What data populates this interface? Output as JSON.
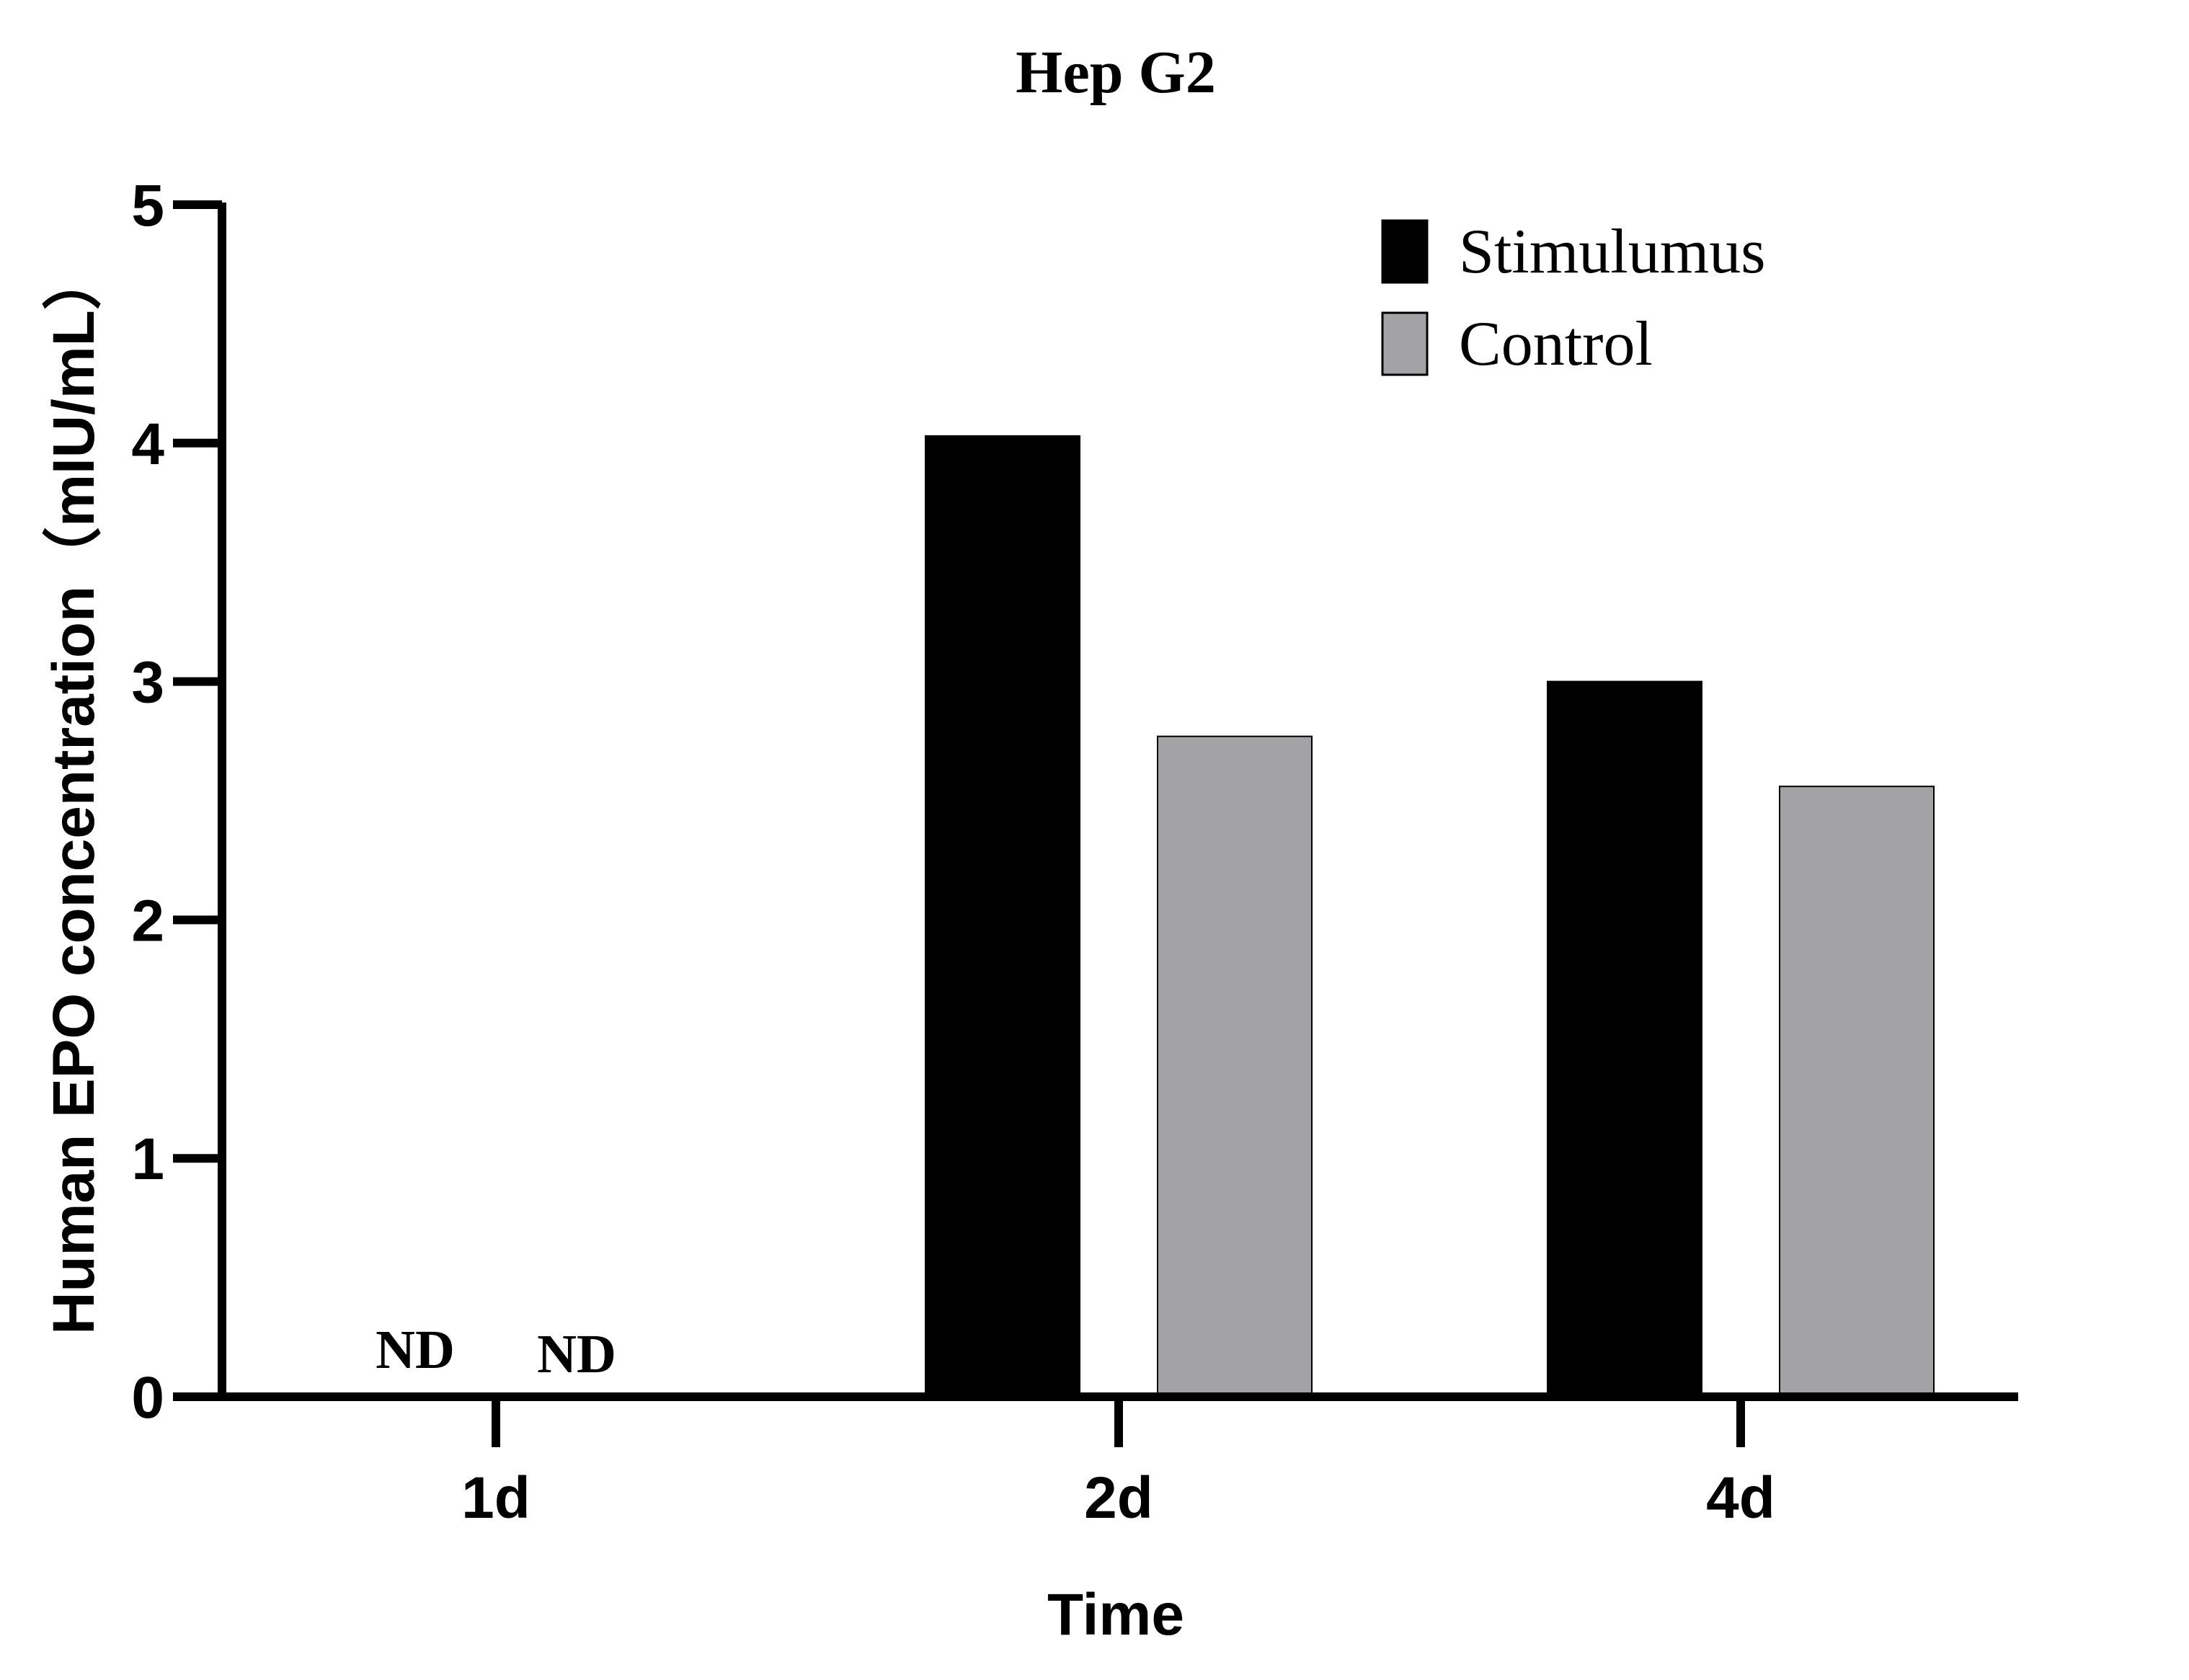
{
  "chart_data": {
    "type": "bar",
    "title": "Hep G2",
    "xlabel": "Time",
    "ylabel": "Human EPO concentration（mIU/mL）",
    "categories": [
      "1d",
      "2d",
      "4d"
    ],
    "series": [
      {
        "name": "Stimulumus",
        "values": [
          0,
          4.03,
          3.0
        ],
        "color": "#000000"
      },
      {
        "name": "Control",
        "values": [
          0,
          2.77,
          2.56
        ],
        "color": "#a3a3a6"
      }
    ],
    "annotations": [
      {
        "category": "1d",
        "series": "Stimulumus",
        "text": "ND"
      },
      {
        "category": "1d",
        "series": "Control",
        "text": "ND"
      }
    ],
    "ylim": [
      0,
      5
    ],
    "yticks": [
      "0",
      "1",
      "2",
      "3",
      "4",
      "5"
    ],
    "legend_position": "top-right",
    "grid": false
  }
}
